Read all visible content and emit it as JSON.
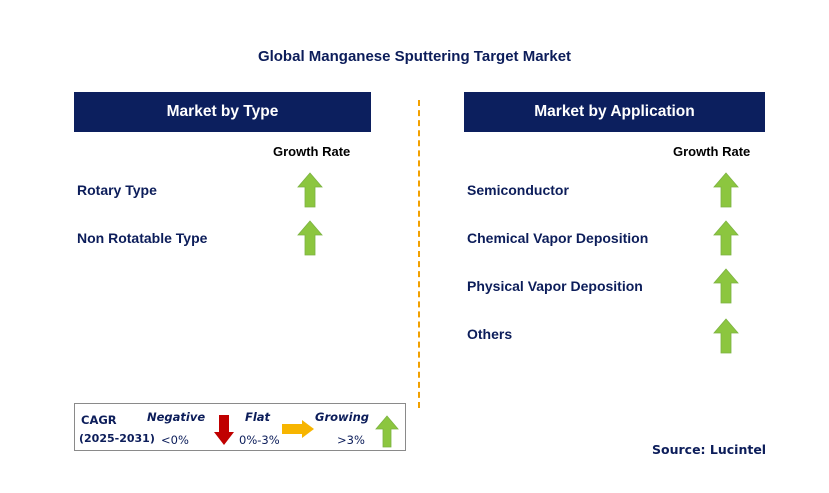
{
  "title": "Global Manganese Sputtering Target Market",
  "left_panel": {
    "header": "Market by Type",
    "growth_label": "Growth Rate",
    "items": [
      {
        "label": "Rotary Type",
        "trend": "growing"
      },
      {
        "label": "Non Rotatable Type",
        "trend": "growing"
      }
    ]
  },
  "right_panel": {
    "header": "Market by Application",
    "growth_label": "Growth Rate",
    "items": [
      {
        "label": "Semiconductor",
        "trend": "growing"
      },
      {
        "label": "Chemical Vapor Deposition",
        "trend": "growing"
      },
      {
        "label": "Physical Vapor Deposition",
        "trend": "growing"
      },
      {
        "label": "Others",
        "trend": "growing"
      }
    ]
  },
  "legend": {
    "cagr_label": "CAGR",
    "period": "(2025-2031)",
    "negative_label": "Negative",
    "negative_value": "<0%",
    "flat_label": "Flat",
    "flat_value": "0%-3%",
    "growing_label": "Growing",
    "growing_value": ">3%"
  },
  "source": "Source: Lucintel",
  "colors": {
    "header_bg": "#0c1f5e",
    "up_arrow": "#8cc63f",
    "down_arrow": "#c00000",
    "flat_arrow": "#f7b500",
    "divider": "#f2a000"
  },
  "icons": {
    "growing": "up-arrow-icon",
    "negative": "down-arrow-icon",
    "flat": "right-arrow-icon"
  }
}
